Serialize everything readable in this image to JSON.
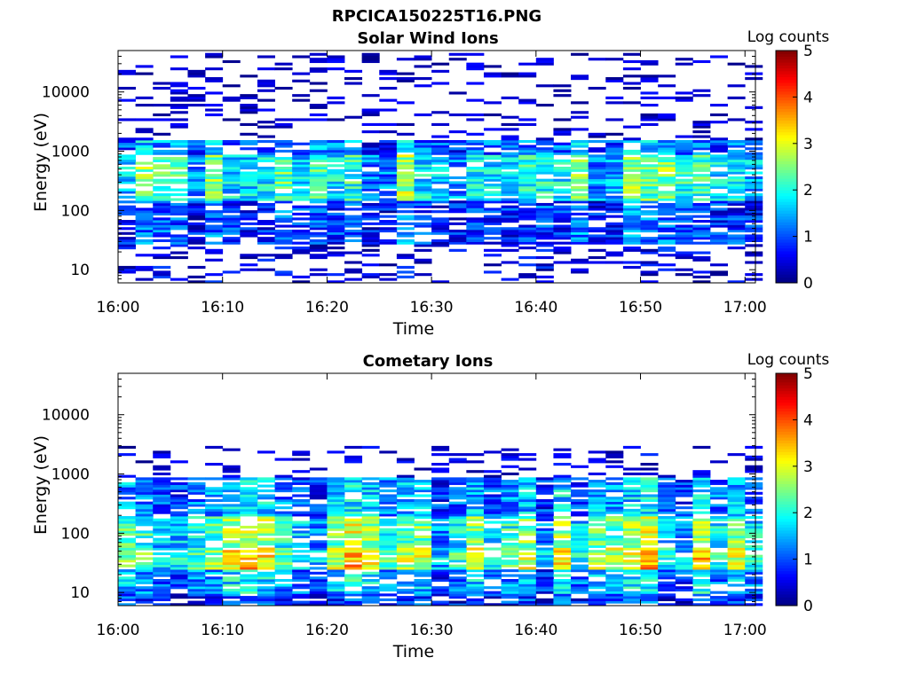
{
  "figure": {
    "title": "RPCICA150225T16.PNG"
  },
  "colormap": [
    "#00007f",
    "#0000ff",
    "#007fff",
    "#00ffff",
    "#7fff7f",
    "#ffff00",
    "#ff7f00",
    "#ff0000",
    "#7f0000"
  ],
  "chart_data": [
    {
      "type": "heatmap",
      "title": "Solar Wind Ions",
      "xlabel": "Time",
      "ylabel": "Energy (eV)",
      "xlim": [
        "16:00",
        "17:01"
      ],
      "ylim": [
        6,
        50000
      ],
      "y_scale": "log",
      "x_ticks": [
        "16:00",
        "16:10",
        "16:20",
        "16:30",
        "16:40",
        "16:50",
        "17:00"
      ],
      "y_ticks": [
        {
          "value": 10,
          "label": "10"
        },
        {
          "value": 100,
          "label": "100"
        },
        {
          "value": 1000,
          "label": "1000"
        },
        {
          "value": 10000,
          "label": "10000"
        }
      ],
      "colorbar": {
        "label": "Log counts",
        "min": 0,
        "max": 5,
        "ticks": [
          "0",
          "1",
          "2",
          "3",
          "4",
          "5"
        ]
      },
      "time_bins_minutes": 37,
      "time_start": "16:00",
      "time_step_seconds": 100,
      "energy_bins": 96,
      "profile": [
        {
          "energy_range": [
            6,
            28
          ],
          "log_counts": 0.35
        },
        {
          "energy_range": [
            28,
            150
          ],
          "log_counts": 0.9
        },
        {
          "energy_range": [
            150,
            900
          ],
          "log_counts": 1.9
        },
        {
          "energy_range": [
            900,
            1500
          ],
          "log_counts": 1.2
        },
        {
          "energy_range": [
            1500,
            45000
          ],
          "log_counts": 0.1
        }
      ]
    },
    {
      "type": "heatmap",
      "title": "Cometary Ions",
      "xlabel": "Time",
      "ylabel": "Energy (eV)",
      "xlim": [
        "16:00",
        "17:01"
      ],
      "ylim": [
        6,
        50000
      ],
      "y_scale": "log",
      "x_ticks": [
        "16:00",
        "16:10",
        "16:20",
        "16:30",
        "16:40",
        "16:50",
        "17:00"
      ],
      "y_ticks": [
        {
          "value": 10,
          "label": "10"
        },
        {
          "value": 100,
          "label": "100"
        },
        {
          "value": 1000,
          "label": "1000"
        },
        {
          "value": 10000,
          "label": "10000"
        }
      ],
      "colorbar": {
        "label": "Log counts",
        "min": 0,
        "max": 5,
        "ticks": [
          "0",
          "1",
          "2",
          "3",
          "4",
          "5"
        ]
      },
      "time_bins_minutes": 37,
      "time_start": "16:00",
      "time_step_seconds": 100,
      "energy_bins": 96,
      "profile": [
        {
          "energy_range": [
            6,
            10
          ],
          "log_counts": 0.8
        },
        {
          "energy_range": [
            10,
            25
          ],
          "log_counts": 1.4
        },
        {
          "energy_range": [
            25,
            60
          ],
          "log_counts": 2.5
        },
        {
          "energy_range": [
            60,
            200
          ],
          "log_counts": 2.1
        },
        {
          "energy_range": [
            200,
            900
          ],
          "log_counts": 1.3
        },
        {
          "energy_range": [
            900,
            3000
          ],
          "log_counts": 0.2
        }
      ]
    }
  ]
}
